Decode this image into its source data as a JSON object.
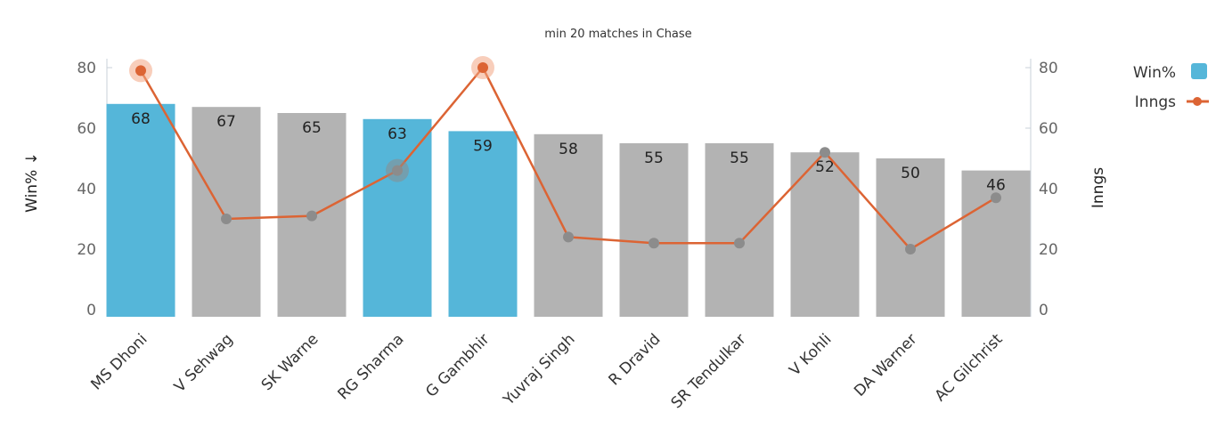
{
  "chart_data": {
    "type": "bar",
    "title": "",
    "subtitle": "min 20 matches in Chase",
    "categories": [
      "MS Dhoni",
      "V Sehwag",
      "SK Warne",
      "RG Sharma",
      "G Gambhir",
      "Yuvraj Singh",
      "R Dravid",
      "SR Tendulkar",
      "V Kohli",
      "DA Warner",
      "AC Gilchrist"
    ],
    "series": [
      {
        "name": "Win%",
        "type": "bar",
        "axis": "left",
        "values": [
          68,
          67,
          65,
          63,
          59,
          58,
          55,
          55,
          52,
          50,
          46
        ],
        "data_labels": [
          "68",
          "67",
          "65",
          "63",
          "59",
          "58",
          "55",
          "55",
          "52",
          "50",
          "46"
        ],
        "highlighted": [
          true,
          false,
          false,
          true,
          true,
          false,
          false,
          false,
          false,
          false,
          false
        ]
      },
      {
        "name": "Inngs",
        "type": "line",
        "axis": "right",
        "values": [
          79,
          30,
          31,
          46,
          80,
          24,
          22,
          22,
          52,
          20,
          37
        ],
        "emphasized": [
          true,
          false,
          false,
          true,
          true,
          false,
          false,
          false,
          false,
          false,
          false
        ]
      }
    ],
    "ylabel": "Win% ↓",
    "y2label": "Inngs",
    "ylim": [
      0,
      80
    ],
    "y2lim": [
      0,
      80
    ],
    "yticks": [
      "0",
      "20",
      "40",
      "60",
      "80"
    ],
    "y2ticks": [
      "0",
      "20",
      "40",
      "60",
      "80"
    ],
    "grid": false,
    "legend": {
      "placement": "top-right",
      "items": [
        {
          "label": "Win%",
          "marker": "square"
        },
        {
          "label": "Inngs",
          "marker": "line-dot"
        }
      ]
    },
    "colors": {
      "highlight_bar": "#55b6d9",
      "default_bar": "#b3b3b3",
      "line": "#dc6434",
      "line_point": "#8c8c8c",
      "emphasis_halo_orange": "#f2a684",
      "emphasis_halo_gray": "#8c8c8c",
      "axis": "#c9d2d8"
    }
  }
}
